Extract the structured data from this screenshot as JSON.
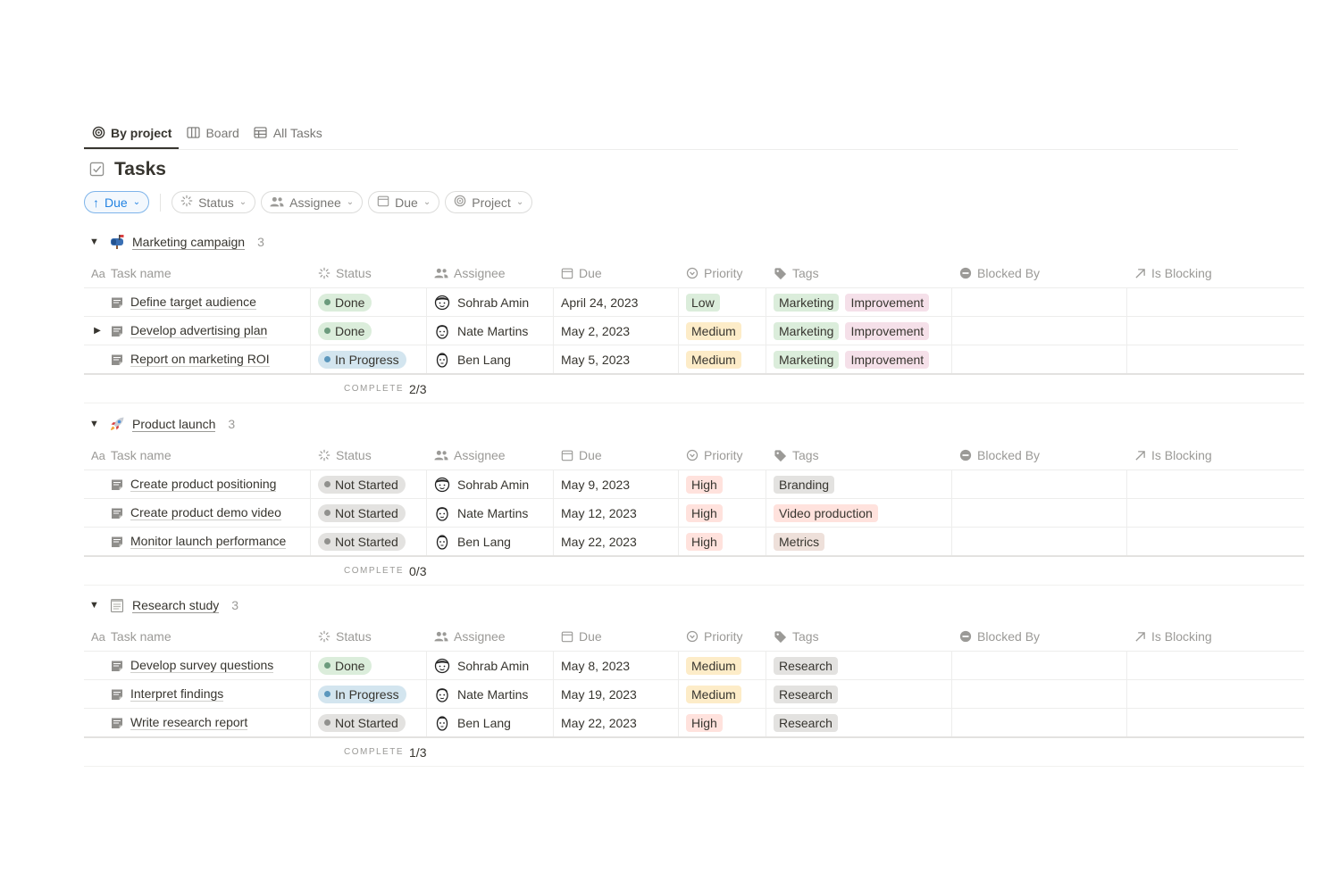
{
  "colors": {
    "done_bg": "#dbeddb",
    "done_dot": "#6c9b7d",
    "progress_bg": "#d3e5ef",
    "progress_dot": "#5b97bd",
    "notstarted_bg": "#e3e2e0",
    "notstarted_dot": "#91918e",
    "low_bg": "#dbeddb",
    "medium_bg": "#fdecc8",
    "high_bg": "#ffe2dd",
    "tag_marketing": "#dbeddb",
    "tag_improvement": "#f5e0e9",
    "tag_branding": "#e3e2e0",
    "tag_video": "#ffe2dd",
    "tag_metrics": "#eee0da",
    "tag_research": "#e3e2e0"
  },
  "tabs": [
    {
      "label": "By project",
      "icon": "target-icon"
    },
    {
      "label": "Board",
      "icon": "board-icon"
    },
    {
      "label": "All Tasks",
      "icon": "table-icon"
    }
  ],
  "page": {
    "title": "Tasks",
    "icon": "checkbox-icon"
  },
  "filters": {
    "sort": "Due",
    "items": [
      {
        "label": "Status",
        "icon": "status-icon"
      },
      {
        "label": "Assignee",
        "icon": "people-icon"
      },
      {
        "label": "Due",
        "icon": "calendar-icon"
      },
      {
        "label": "Project",
        "icon": "target-icon"
      }
    ]
  },
  "columns": [
    {
      "label": "Task name",
      "icon": "Aa"
    },
    {
      "label": "Status",
      "icon": "status-icon"
    },
    {
      "label": "Assignee",
      "icon": "people-icon"
    },
    {
      "label": "Due",
      "icon": "calendar-icon"
    },
    {
      "label": "Priority",
      "icon": "priority-icon"
    },
    {
      "label": "Tags",
      "icon": "tag-icon"
    },
    {
      "label": "Blocked By",
      "icon": "blocked-icon"
    },
    {
      "label": "Is Blocking",
      "icon": "arrow-up-right-icon"
    }
  ],
  "complete_label": "COMPLETE",
  "groups": [
    {
      "name": "Marketing campaign",
      "emoji": "mailbox-icon",
      "count": "3",
      "complete": "2/3",
      "rows": [
        {
          "task": "Define target audience",
          "status": "Done",
          "assignee": "Sohrab Amin",
          "due": "April 24, 2023",
          "priority": "Low",
          "tags": [
            "Marketing",
            "Improvement"
          ],
          "expand": false
        },
        {
          "task": "Develop advertising plan",
          "status": "Done",
          "assignee": "Nate Martins",
          "due": "May 2, 2023",
          "priority": "Medium",
          "tags": [
            "Marketing",
            "Improvement"
          ],
          "expand": true
        },
        {
          "task": "Report on marketing ROI",
          "status": "In Progress",
          "assignee": "Ben Lang",
          "due": "May 5, 2023",
          "priority": "Medium",
          "tags": [
            "Marketing",
            "Improvement"
          ],
          "expand": false
        }
      ]
    },
    {
      "name": "Product launch",
      "emoji": "rocket-icon",
      "count": "3",
      "complete": "0/3",
      "rows": [
        {
          "task": "Create product positioning",
          "status": "Not Started",
          "assignee": "Sohrab Amin",
          "due": "May 9, 2023",
          "priority": "High",
          "tags": [
            "Branding"
          ],
          "expand": false
        },
        {
          "task": "Create product demo video",
          "status": "Not Started",
          "assignee": "Nate Martins",
          "due": "May 12, 2023",
          "priority": "High",
          "tags": [
            "Video production"
          ],
          "expand": false
        },
        {
          "task": "Monitor launch performance",
          "status": "Not Started",
          "assignee": "Ben Lang",
          "due": "May 22, 2023",
          "priority": "High",
          "tags": [
            "Metrics"
          ],
          "expand": false
        }
      ]
    },
    {
      "name": "Research study",
      "emoji": "notepad-icon",
      "count": "3",
      "complete": "1/3",
      "rows": [
        {
          "task": "Develop survey questions",
          "status": "Done",
          "assignee": "Sohrab Amin",
          "due": "May 8, 2023",
          "priority": "Medium",
          "tags": [
            "Research"
          ],
          "expand": false
        },
        {
          "task": "Interpret findings",
          "status": "In Progress",
          "assignee": "Nate Martins",
          "due": "May 19, 2023",
          "priority": "Medium",
          "tags": [
            "Research"
          ],
          "expand": false
        },
        {
          "task": "Write research report",
          "status": "Not Started",
          "assignee": "Ben Lang",
          "due": "May 22, 2023",
          "priority": "High",
          "tags": [
            "Research"
          ],
          "expand": false
        }
      ]
    }
  ]
}
